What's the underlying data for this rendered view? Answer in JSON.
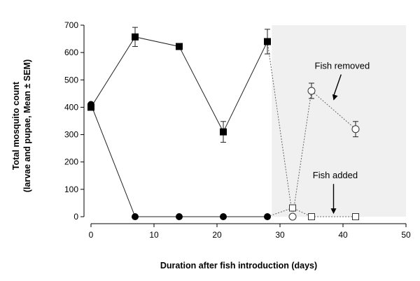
{
  "chart_data": {
    "type": "line",
    "title": "",
    "xlabel": "Duration after fish introduction (days)",
    "ylabel_line1": "Total mosquito count",
    "ylabel_line2": "(larvae and pupae, Mean ± SEM)",
    "xlim": [
      0,
      50
    ],
    "ylim": [
      0,
      700
    ],
    "xticks": [
      0,
      10,
      20,
      30,
      40,
      50
    ],
    "yticks": [
      0,
      100,
      200,
      300,
      400,
      500,
      600,
      700
    ],
    "grid": false,
    "shaded_region": {
      "x_start": 28.7,
      "x_end": 50,
      "color": "#f0f0f0"
    },
    "series": [
      {
        "marker": "filled-square",
        "line": "solid",
        "x": [
          0,
          7,
          14,
          21,
          28
        ],
        "y": [
          400,
          657,
          622,
          310,
          640
        ],
        "sem": [
          0,
          35,
          8,
          38,
          45
        ]
      },
      {
        "marker": "open-circle",
        "line": "dashed",
        "x": [
          28,
          32,
          35,
          42
        ],
        "y": [
          640,
          0,
          460,
          320
        ],
        "sem": [
          0,
          0,
          28,
          28
        ]
      },
      {
        "marker": "filled-circle",
        "line": "solid",
        "x": [
          0,
          7,
          14,
          21,
          28
        ],
        "y": [
          410,
          0,
          0,
          0,
          0
        ],
        "sem": [
          0,
          0,
          0,
          0,
          0
        ]
      },
      {
        "marker": "open-square",
        "line": "dashed",
        "x": [
          28,
          32,
          35,
          42
        ],
        "y": [
          0,
          32,
          0,
          0
        ],
        "sem": [
          0,
          0,
          0,
          0
        ]
      }
    ],
    "annotations": [
      {
        "text": "Fish removed",
        "arrow_to": {
          "x": 38.5,
          "y": 425
        }
      },
      {
        "text": "Fish added",
        "arrow_to": {
          "x": 38.5,
          "y": 10
        }
      }
    ]
  }
}
